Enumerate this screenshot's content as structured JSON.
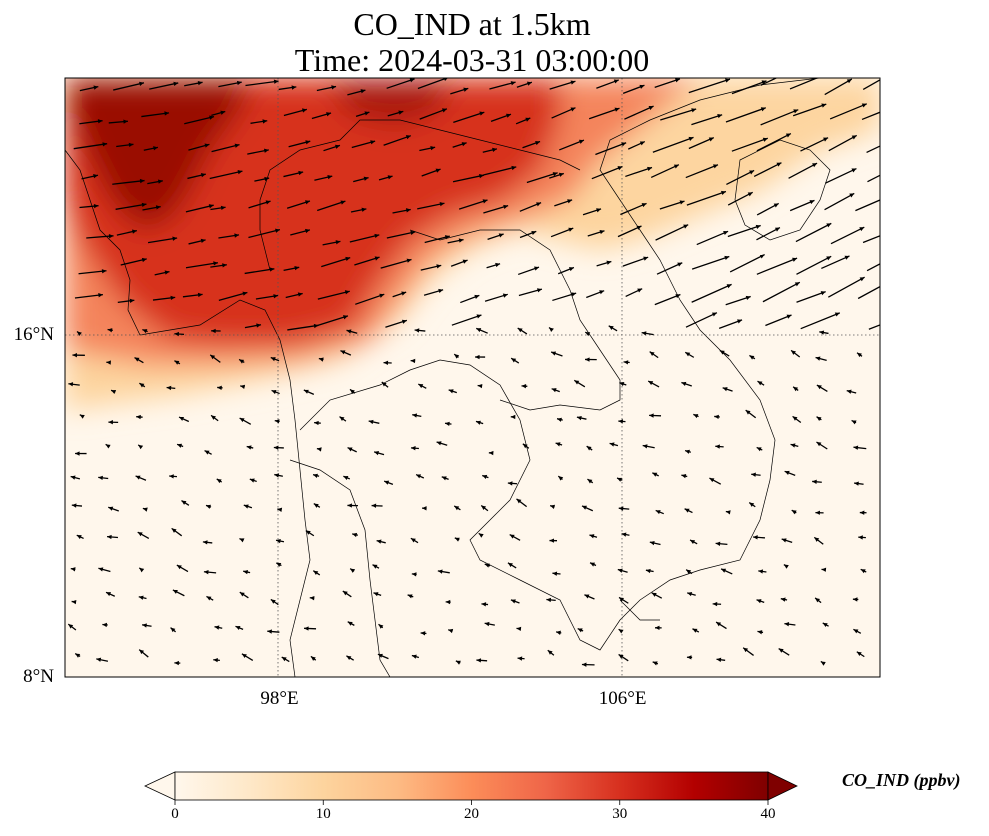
{
  "title_line1": "CO_IND at 1.5km",
  "title_line2": "Time: 2024-03-31 03:00:00",
  "map": {
    "lon_range": [
      93,
      112
    ],
    "lat_range": [
      8,
      22
    ],
    "lat_ticks": [
      {
        "value": 16,
        "label": "16°N"
      },
      {
        "value": 8,
        "label": "8°N"
      }
    ],
    "lon_ticks": [
      {
        "value": 98,
        "label": "98°E"
      },
      {
        "value": 106,
        "label": "106°E"
      }
    ],
    "grid": "dotted",
    "wind_vectors": "shown"
  },
  "colorbar": {
    "label": "CO_IND (ppbv)",
    "range": [
      0,
      40
    ],
    "extend": "both",
    "colormap": "OrRd",
    "ticks": [
      "0",
      "10",
      "20",
      "30",
      "40"
    ]
  }
}
